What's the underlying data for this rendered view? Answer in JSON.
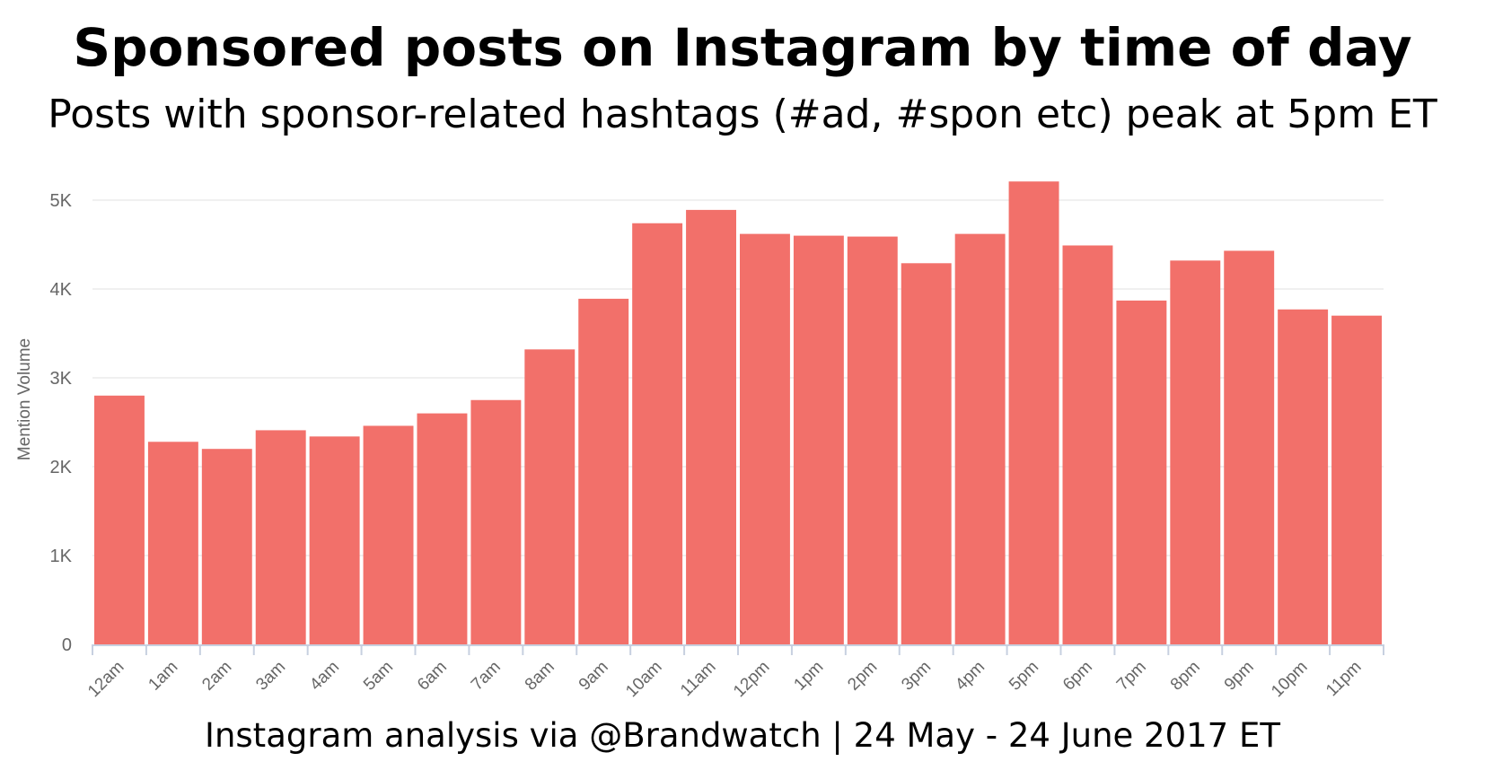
{
  "header": {
    "title": "Sponsored posts on Instagram by time of day",
    "subtitle": "Posts with sponsor-related hashtags (#ad, #spon etc) peak at 5pm ET"
  },
  "footer": {
    "source": "Instagram analysis via @Brandwatch | 24 May - 24 June 2017 ET"
  },
  "colors": {
    "bar": "#F2706A",
    "grid": "#EBEBEB",
    "axis": "#C7D0E0",
    "tick_text": "#666666"
  },
  "chart_data": {
    "type": "bar",
    "title": "",
    "xlabel": "",
    "ylabel": "Mention Volume",
    "ylim": [
      0,
      5000
    ],
    "yticks": [
      0,
      1000,
      2000,
      3000,
      4000,
      5000
    ],
    "ytick_labels": [
      "0",
      "1K",
      "2K",
      "3K",
      "4K",
      "5K"
    ],
    "grid": true,
    "legend": "none",
    "categories": [
      "12am",
      "1am",
      "2am",
      "3am",
      "4am",
      "5am",
      "6am",
      "7am",
      "8am",
      "9am",
      "10am",
      "11am",
      "12pm",
      "1pm",
      "2pm",
      "3pm",
      "4pm",
      "5pm",
      "6pm",
      "7pm",
      "8pm",
      "9pm",
      "10pm",
      "11pm"
    ],
    "values": [
      2800,
      2280,
      2200,
      2410,
      2340,
      2460,
      2600,
      2750,
      3320,
      3890,
      4740,
      4890,
      4620,
      4600,
      4590,
      4290,
      4620,
      5210,
      4490,
      3870,
      4320,
      4430,
      3770,
      3700
    ]
  }
}
